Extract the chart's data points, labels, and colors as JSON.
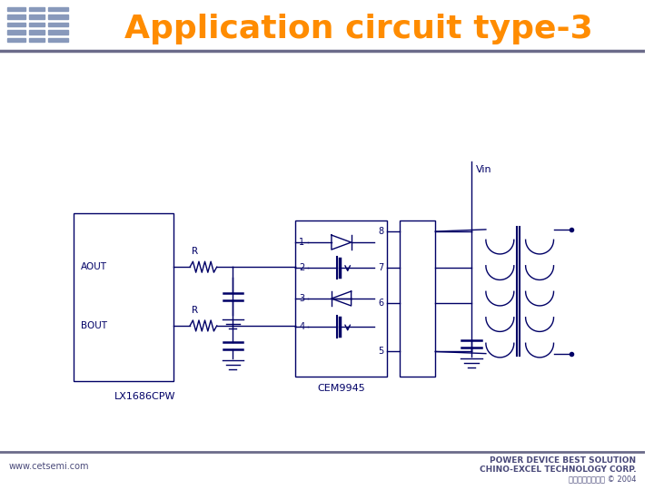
{
  "title": "Application circuit type-3",
  "title_color": "#FF8C00",
  "title_fontsize": 26,
  "slide_bg": "#FFFFFF",
  "header_line_color": "#6B6B8A",
  "footer_line_color": "#6B6B8A",
  "website": "www.cetsemi.com",
  "footer_line1": "POWER DEVICE BEST SOLUTION",
  "footer_line2": "CHINO-EXCEL TECHNOLOGY CORP.",
  "footer_line3": "华麑集成有限公司 © 2004",
  "lx_label": "LX1686CPW",
  "ic_label": "CEM9945",
  "vin_label": "Vin",
  "aout_label": "AOUT",
  "bout_label": "BOUT",
  "r_label": "R",
  "footer_text_color": "#4A4A7A",
  "logo_color": "#8899BB",
  "circuit_color": "#000066"
}
